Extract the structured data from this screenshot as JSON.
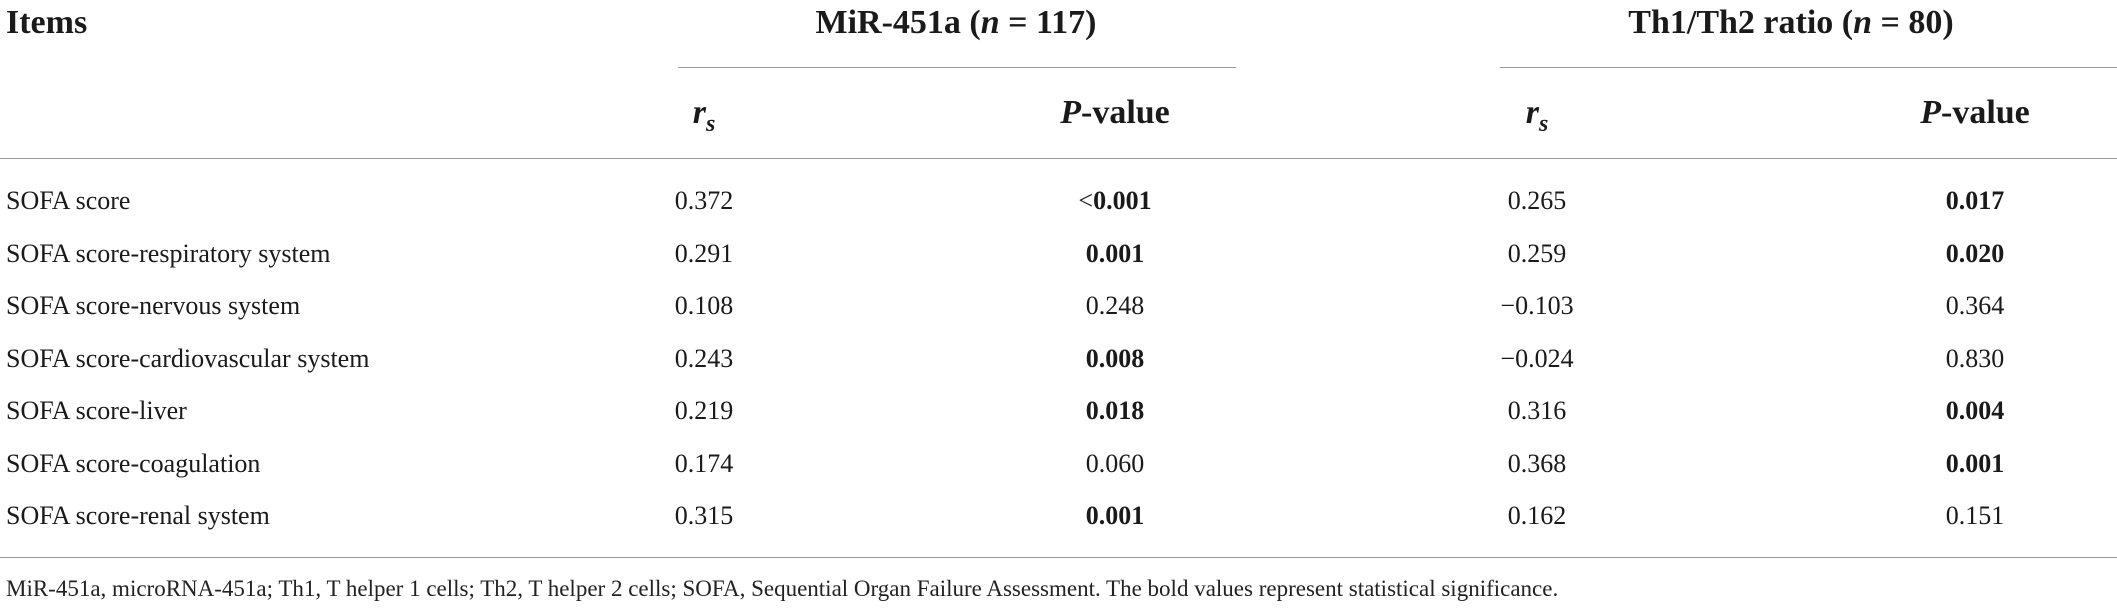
{
  "header": {
    "items": "Items",
    "group1": {
      "name": "MiR-451a (",
      "n_label": "n",
      "n_rest": " = 117)"
    },
    "group2": {
      "name": "Th1/Th2 ratio (",
      "n_label": "n",
      "n_rest": " = 80)"
    },
    "rs_label": "r",
    "rs_sub": "s",
    "p_label": "P",
    "p_rest": "-value"
  },
  "rows": [
    {
      "item": "SOFA score",
      "mir_rs": "0.372",
      "mir_p_prefix": "<",
      "mir_p": "0.001",
      "mir_p_bold": true,
      "th_rs": "0.265",
      "th_p": "0.017",
      "th_p_bold": true
    },
    {
      "item": "SOFA score-respiratory system",
      "mir_rs": "0.291",
      "mir_p_prefix": "",
      "mir_p": "0.001",
      "mir_p_bold": true,
      "th_rs": "0.259",
      "th_p": "0.020",
      "th_p_bold": true
    },
    {
      "item": "SOFA score-nervous  system",
      "mir_rs": "0.108",
      "mir_p_prefix": "",
      "mir_p": "0.248",
      "mir_p_bold": false,
      "th_rs": "−0.103",
      "th_p": "0.364",
      "th_p_bold": false
    },
    {
      "item": "SOFA score-cardiovascular  system",
      "mir_rs": "0.243",
      "mir_p_prefix": "",
      "mir_p": "0.008",
      "mir_p_bold": true,
      "th_rs": "−0.024",
      "th_p": "0.830",
      "th_p_bold": false
    },
    {
      "item": "SOFA score-liver",
      "mir_rs": "0.219",
      "mir_p_prefix": "",
      "mir_p": "0.018",
      "mir_p_bold": true,
      "th_rs": "0.316",
      "th_p": "0.004",
      "th_p_bold": true
    },
    {
      "item": "SOFA score-coagulation",
      "mir_rs": "0.174",
      "mir_p_prefix": "",
      "mir_p": "0.060",
      "mir_p_bold": false,
      "th_rs": "0.368",
      "th_p": "0.001",
      "th_p_bold": true
    },
    {
      "item": "SOFA score-renal  system",
      "mir_rs": "0.315",
      "mir_p_prefix": "",
      "mir_p": "0.001",
      "mir_p_bold": true,
      "th_rs": "0.162",
      "th_p": "0.151",
      "th_p_bold": false
    }
  ],
  "footnote": "MiR-451a, microRNA-451a; Th1, T helper 1 cells; Th2, T helper 2 cells; SOFA, Sequential Organ Failure Assessment. The bold values represent statistical significance."
}
